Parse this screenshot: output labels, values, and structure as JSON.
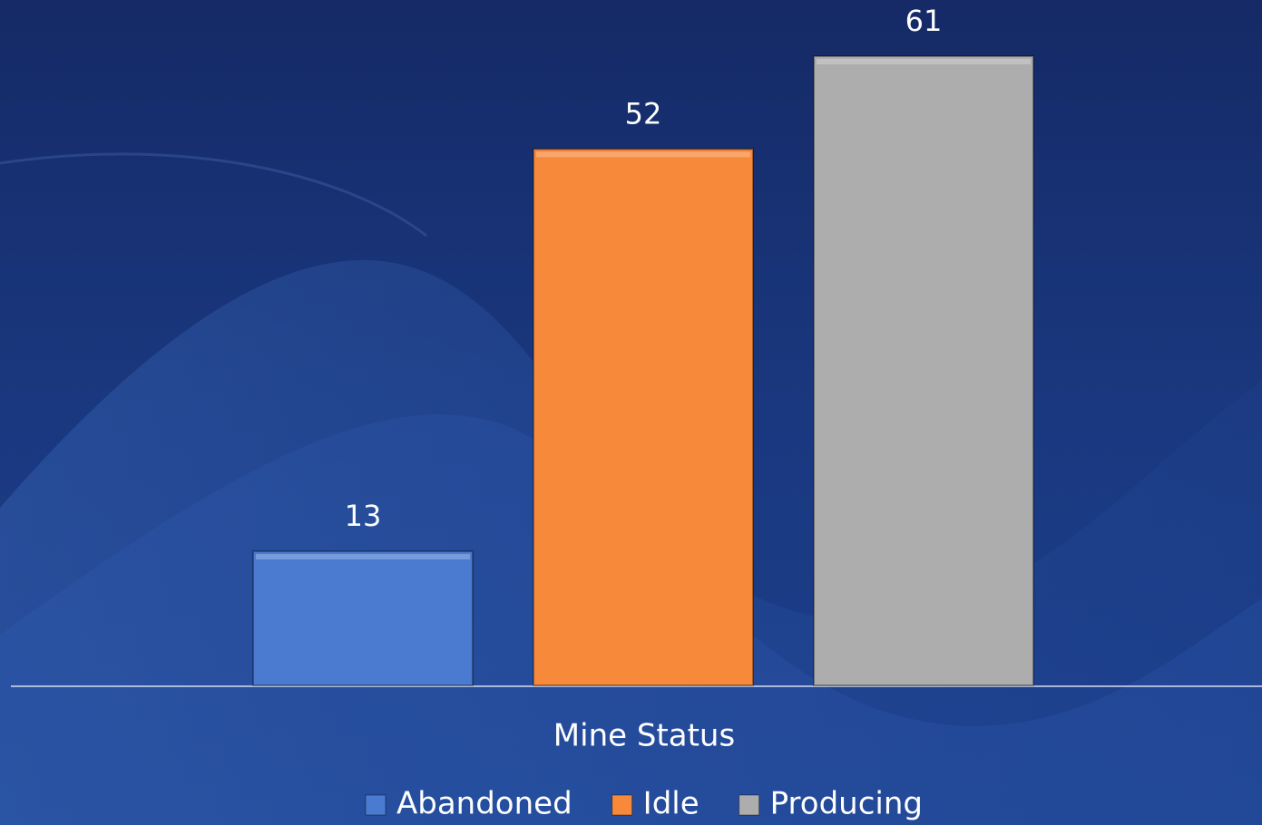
{
  "chart_data": {
    "type": "bar",
    "categories": [
      "Mine Status"
    ],
    "series": [
      {
        "name": "Abandoned",
        "color": "#4a7bd1",
        "values": [
          13
        ]
      },
      {
        "name": "Idle",
        "color": "#f7893b",
        "values": [
          52
        ]
      },
      {
        "name": "Producing",
        "color": "#adadad",
        "values": [
          61
        ]
      }
    ],
    "legend": "bottom"
  }
}
